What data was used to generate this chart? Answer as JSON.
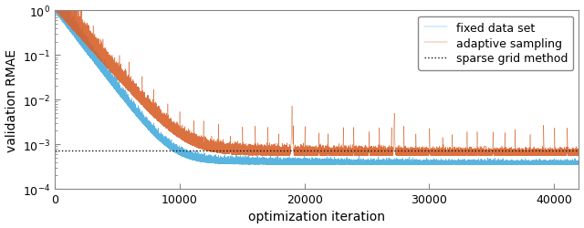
{
  "title": "",
  "xlabel": "optimization iteration",
  "ylabel": "validation RMAE",
  "xlim": [
    0,
    42000
  ],
  "ylim_log": [
    -4,
    0
  ],
  "sparse_grid_value": 0.00072,
  "blue_color": "#5ab4e0",
  "orange_color": "#d9622b",
  "dotted_color": "#111111",
  "n_iter": 42000,
  "legend_labels": [
    "fixed data set",
    "adaptive sampling",
    "sparse grid method"
  ],
  "figsize": [
    6.4,
    2.51
  ],
  "dpi": 100
}
